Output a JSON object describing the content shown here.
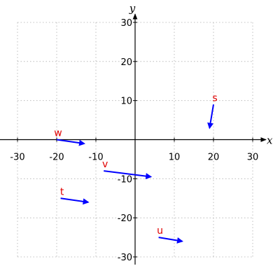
{
  "chart_data": {
    "type": "vector-field",
    "xlabel": "x",
    "ylabel": "y",
    "xlim": [
      -30,
      30
    ],
    "ylim": [
      -30,
      30
    ],
    "xticks": [
      -30,
      -20,
      -10,
      10,
      20,
      30
    ],
    "yticks": [
      -30,
      -20,
      -10,
      10,
      20,
      30
    ],
    "grid": true,
    "vector_color": "#0000ff",
    "label_color": "#e00000",
    "vectors": [
      {
        "name": "w",
        "start": [
          -20,
          0
        ],
        "end": [
          -13,
          -1
        ]
      },
      {
        "name": "s",
        "start": [
          20,
          9
        ],
        "end": [
          19,
          3
        ]
      },
      {
        "name": "v",
        "start": [
          -8,
          -8
        ],
        "end": [
          4,
          -9.5
        ]
      },
      {
        "name": "t",
        "start": [
          -19,
          -15
        ],
        "end": [
          -12,
          -16
        ]
      },
      {
        "name": "u",
        "start": [
          6,
          -25
        ],
        "end": [
          12,
          -26
        ]
      }
    ]
  }
}
